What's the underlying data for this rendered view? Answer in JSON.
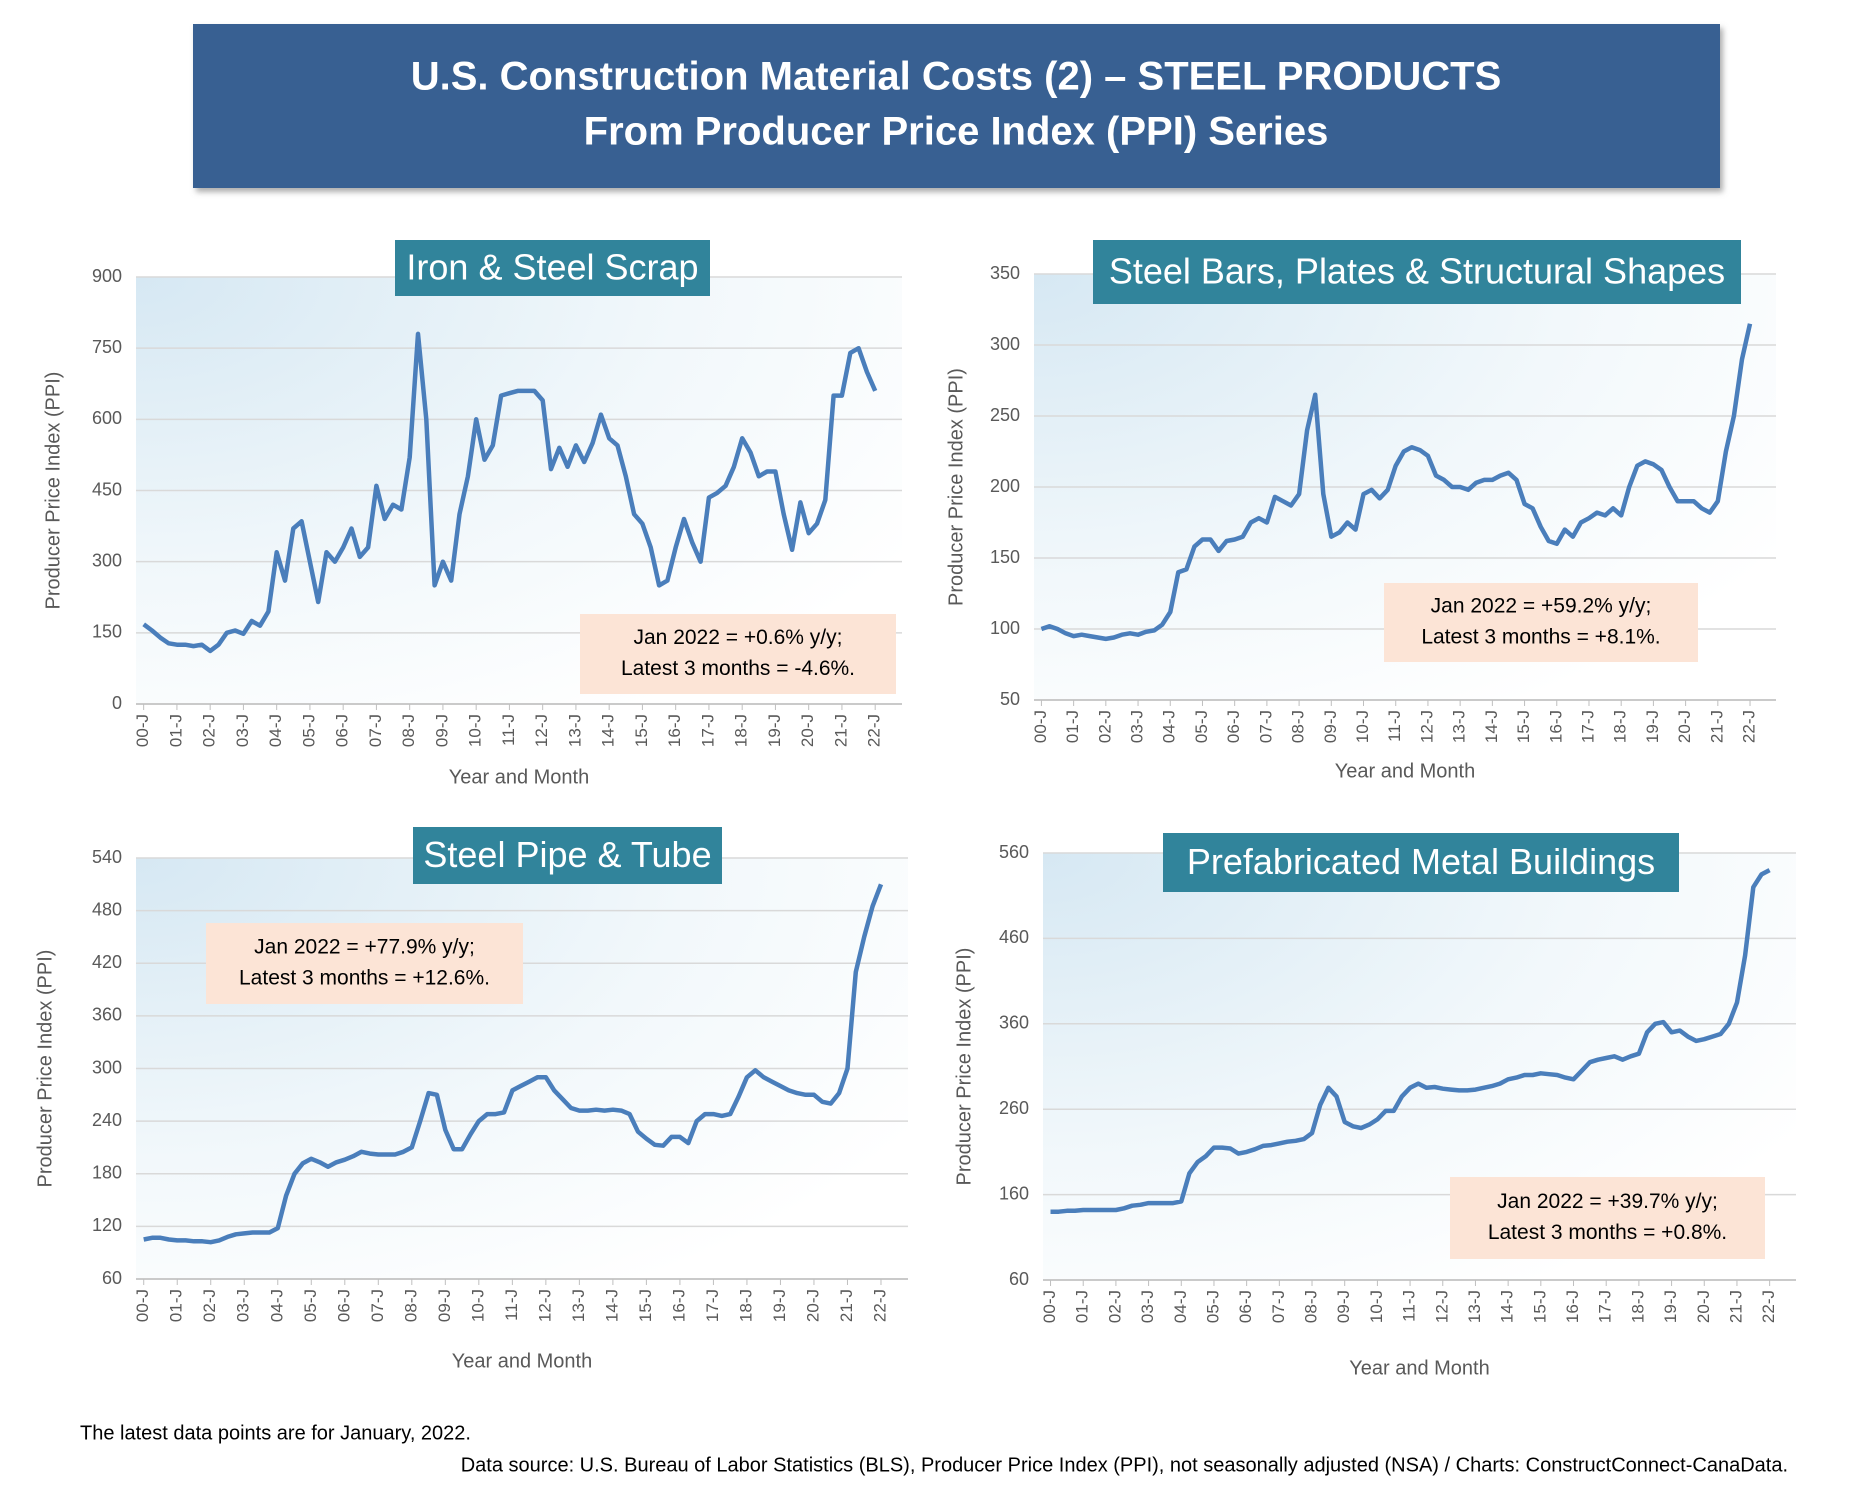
{
  "header": {
    "title": [
      "U.S. Construction Material Costs (2) – STEEL PRODUCTS",
      "From Producer Price Index (PPI) Series"
    ]
  },
  "footer": {
    "note": "The latest data points are for January, 2022.",
    "source": "Data source: U.S. Bureau of Labor Statistics (BLS), Producer Price Index (PPI), not seasonally adjusted (NSA) / Charts: ConstructConnect-CanaData."
  },
  "chart_data": [
    {
      "type": "line",
      "title": "Iron & Steel Scrap",
      "x_label": "Year and Month",
      "y_label": "Producer Price Index (PPI)",
      "annotation": [
        "Jan 2022 = +0.6% y/y;",
        "Latest 3 months = -4.6%."
      ],
      "categories": [
        "00-J",
        null,
        null,
        null,
        "01-J",
        null,
        null,
        null,
        "02-J",
        null,
        null,
        null,
        "03-J",
        null,
        null,
        null,
        "04-J",
        null,
        null,
        null,
        "05-J",
        null,
        null,
        null,
        "06-J",
        null,
        null,
        null,
        "07-J",
        null,
        null,
        null,
        "08-J",
        null,
        null,
        null,
        "09-J",
        null,
        null,
        null,
        "10-J",
        null,
        null,
        null,
        "11-J",
        null,
        null,
        null,
        "12-J",
        null,
        null,
        null,
        "13-J",
        null,
        null,
        null,
        "14-J",
        null,
        null,
        null,
        "15-J",
        null,
        null,
        null,
        "16-J",
        null,
        null,
        null,
        "17-J",
        null,
        null,
        null,
        "18-J",
        null,
        null,
        null,
        "19-J",
        null,
        null,
        null,
        "20-J",
        null,
        null,
        null,
        "21-J",
        null,
        null,
        null,
        "22-J"
      ],
      "values": [
        168,
        155,
        140,
        128,
        125,
        125,
        122,
        125,
        112,
        125,
        150,
        155,
        148,
        175,
        165,
        195,
        320,
        260,
        370,
        385,
        300,
        215,
        320,
        300,
        330,
        370,
        310,
        330,
        460,
        390,
        420,
        410,
        520,
        780,
        600,
        250,
        300,
        260,
        400,
        480,
        600,
        515,
        545,
        650,
        655,
        660,
        660,
        660,
        640,
        495,
        540,
        500,
        545,
        510,
        550,
        610,
        560,
        545,
        480,
        400,
        380,
        330,
        250,
        260,
        330,
        390,
        340,
        300,
        435,
        445,
        460,
        500,
        560,
        530,
        480,
        490,
        490,
        400,
        325,
        425,
        360,
        380,
        430,
        650,
        650,
        740,
        750,
        700,
        660
      ],
      "color": "#4a7ebb",
      "ylim": [
        0,
        900
      ],
      "yticks": [
        0,
        150,
        300,
        450,
        600,
        750,
        900
      ],
      "grid": true
    },
    {
      "type": "line",
      "title": "Steel Bars, Plates & Structural Shapes",
      "x_label": "Year and Month",
      "y_label": "Producer Price Index (PPI)",
      "annotation": [
        "Jan 2022 = +59.2% y/y;",
        "Latest 3 months = +8.1%."
      ],
      "categories": [
        "00-J",
        null,
        null,
        null,
        "01-J",
        null,
        null,
        null,
        "02-J",
        null,
        null,
        null,
        "03-J",
        null,
        null,
        null,
        "04-J",
        null,
        null,
        null,
        "05-J",
        null,
        null,
        null,
        "06-J",
        null,
        null,
        null,
        "07-J",
        null,
        null,
        null,
        "08-J",
        null,
        null,
        null,
        "09-J",
        null,
        null,
        null,
        "10-J",
        null,
        null,
        null,
        "11-J",
        null,
        null,
        null,
        "12-J",
        null,
        null,
        null,
        "13-J",
        null,
        null,
        null,
        "14-J",
        null,
        null,
        null,
        "15-J",
        null,
        null,
        null,
        "16-J",
        null,
        null,
        null,
        "17-J",
        null,
        null,
        null,
        "18-J",
        null,
        null,
        null,
        "19-J",
        null,
        null,
        null,
        "20-J",
        null,
        null,
        null,
        "21-J",
        null,
        null,
        null,
        "22-J"
      ],
      "values": [
        100,
        102,
        100,
        97,
        95,
        96,
        95,
        94,
        93,
        94,
        96,
        97,
        96,
        98,
        99,
        103,
        112,
        140,
        142,
        158,
        163,
        163,
        155,
        162,
        163,
        165,
        175,
        178,
        175,
        193,
        190,
        187,
        195,
        240,
        265,
        195,
        165,
        168,
        175,
        170,
        195,
        198,
        192,
        198,
        215,
        225,
        228,
        226,
        222,
        208,
        205,
        200,
        200,
        198,
        203,
        205,
        205,
        208,
        210,
        205,
        188,
        185,
        172,
        162,
        160,
        170,
        165,
        175,
        178,
        182,
        180,
        185,
        180,
        200,
        215,
        218,
        216,
        212,
        200,
        190,
        190,
        190,
        185,
        182,
        190,
        225,
        250,
        290,
        315
      ],
      "color": "#4a7ebb",
      "ylim": [
        50,
        350
      ],
      "yticks": [
        50,
        100,
        150,
        200,
        250,
        300,
        350
      ],
      "grid": true
    },
    {
      "type": "line",
      "title": "Steel Pipe & Tube",
      "x_label": "Year and Month",
      "y_label": "Producer Price Index (PPI)",
      "annotation": [
        "Jan 2022 = +77.9% y/y;",
        "Latest 3 months = +12.6%."
      ],
      "categories": [
        "00-J",
        null,
        null,
        null,
        "01-J",
        null,
        null,
        null,
        "02-J",
        null,
        null,
        null,
        "03-J",
        null,
        null,
        null,
        "04-J",
        null,
        null,
        null,
        "05-J",
        null,
        null,
        null,
        "06-J",
        null,
        null,
        null,
        "07-J",
        null,
        null,
        null,
        "08-J",
        null,
        null,
        null,
        "09-J",
        null,
        null,
        null,
        "10-J",
        null,
        null,
        null,
        "11-J",
        null,
        null,
        null,
        "12-J",
        null,
        null,
        null,
        "13-J",
        null,
        null,
        null,
        "14-J",
        null,
        null,
        null,
        "15-J",
        null,
        null,
        null,
        "16-J",
        null,
        null,
        null,
        "17-J",
        null,
        null,
        null,
        "18-J",
        null,
        null,
        null,
        "19-J",
        null,
        null,
        null,
        "20-J",
        null,
        null,
        null,
        "21-J",
        null,
        null,
        null,
        "22-J"
      ],
      "values": [
        105,
        107,
        107,
        105,
        104,
        104,
        103,
        103,
        102,
        104,
        108,
        111,
        112,
        113,
        113,
        113,
        118,
        155,
        180,
        192,
        197,
        193,
        188,
        193,
        196,
        200,
        205,
        203,
        202,
        202,
        202,
        205,
        210,
        240,
        272,
        270,
        230,
        208,
        208,
        225,
        240,
        248,
        248,
        250,
        275,
        280,
        285,
        290,
        290,
        275,
        265,
        255,
        252,
        252,
        253,
        252,
        253,
        252,
        248,
        228,
        220,
        213,
        212,
        222,
        222,
        215,
        240,
        248,
        248,
        246,
        248,
        268,
        290,
        298,
        290,
        285,
        280,
        275,
        272,
        270,
        270,
        262,
        260,
        272,
        300,
        410,
        450,
        485,
        510
      ],
      "color": "#4a7ebb",
      "ylim": [
        60,
        540
      ],
      "yticks": [
        60,
        120,
        180,
        240,
        300,
        360,
        420,
        480,
        540
      ],
      "grid": true
    },
    {
      "type": "line",
      "title": "Prefabricated Metal Buildings",
      "x_label": "Year and Month",
      "y_label": "Producer Price Index (PPI)",
      "annotation": [
        "Jan 2022 = +39.7% y/y;",
        "Latest 3 months = +0.8%."
      ],
      "categories": [
        "00-J",
        null,
        null,
        null,
        "01-J",
        null,
        null,
        null,
        "02-J",
        null,
        null,
        null,
        "03-J",
        null,
        null,
        null,
        "04-J",
        null,
        null,
        null,
        "05-J",
        null,
        null,
        null,
        "06-J",
        null,
        null,
        null,
        "07-J",
        null,
        null,
        null,
        "08-J",
        null,
        null,
        null,
        "09-J",
        null,
        null,
        null,
        "10-J",
        null,
        null,
        null,
        "11-J",
        null,
        null,
        null,
        "12-J",
        null,
        null,
        null,
        "13-J",
        null,
        null,
        null,
        "14-J",
        null,
        null,
        null,
        "15-J",
        null,
        null,
        null,
        "16-J",
        null,
        null,
        null,
        "17-J",
        null,
        null,
        null,
        "18-J",
        null,
        null,
        null,
        "19-J",
        null,
        null,
        null,
        "20-J",
        null,
        null,
        null,
        "21-J",
        null,
        null,
        null,
        "22-J"
      ],
      "values": [
        140,
        140,
        141,
        141,
        142,
        142,
        142,
        142,
        142,
        144,
        147,
        148,
        150,
        150,
        150,
        150,
        152,
        185,
        198,
        205,
        215,
        215,
        214,
        208,
        210,
        213,
        217,
        218,
        220,
        222,
        223,
        225,
        232,
        265,
        285,
        275,
        245,
        240,
        238,
        242,
        248,
        258,
        258,
        275,
        285,
        290,
        285,
        286,
        284,
        283,
        282,
        282,
        283,
        285,
        287,
        290,
        295,
        297,
        300,
        300,
        302,
        301,
        300,
        297,
        295,
        305,
        315,
        318,
        320,
        322,
        318,
        322,
        325,
        350,
        360,
        362,
        350,
        352,
        345,
        340,
        342,
        345,
        348,
        360,
        385,
        440,
        520,
        535,
        540
      ],
      "color": "#4a7ebb",
      "ylim": [
        60,
        560
      ],
      "yticks": [
        60,
        160,
        260,
        360,
        460,
        560
      ],
      "grid": true
    }
  ]
}
